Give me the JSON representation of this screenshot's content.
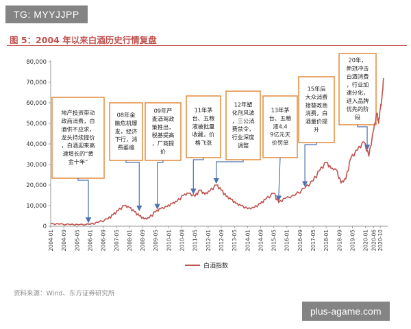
{
  "watermark_top": "TG: MYYJJPP",
  "watermark_bottom": "plus-agame.com",
  "figure_title": "图 5：2004 年以来白酒历史行情复盘",
  "source": "资料来源：Wind、东方证券研究所",
  "colors": {
    "accent": "#c0504d",
    "box_border": "#e28a3a",
    "arrow": "#4a72b0"
  },
  "chart_data": {
    "type": "line",
    "title": "图 5：2004 年以来白酒历史行情复盘",
    "xlabel": "",
    "ylabel": "",
    "ylim": [
      0,
      80000
    ],
    "yticks": [
      "0",
      "10,000",
      "20,000",
      "30,000",
      "40,000",
      "50,000",
      "60,000",
      "70,000",
      "80,000"
    ],
    "grid": false,
    "legend_position": "bottom",
    "x_ticks": [
      "2004-01",
      "2004-09",
      "2005-05",
      "2006-01",
      "2006-09",
      "2007-05",
      "2008-01",
      "2008-09",
      "2009-05",
      "2010-01",
      "2010-09",
      "2011-05",
      "2012-01",
      "2012-09",
      "2013-05",
      "2014-01",
      "2014-09",
      "2015-05",
      "2016-01",
      "2016-09",
      "2017-05",
      "2018-01",
      "2018-09",
      "2019-05",
      "2020-01",
      "2020-06",
      "2020-10"
    ],
    "series": [
      {
        "name": "白酒指数",
        "color": "#c0504d",
        "points": [
          [
            "2004-01",
            1100
          ],
          [
            "2004-06",
            1000
          ],
          [
            "2005-01",
            800
          ],
          [
            "2005-06",
            700
          ],
          [
            "2006-01",
            900
          ],
          [
            "2006-06",
            1800
          ],
          [
            "2006-12",
            3500
          ],
          [
            "2007-03",
            5500
          ],
          [
            "2007-06",
            7500
          ],
          [
            "2007-10",
            10000
          ],
          [
            "2008-01",
            9000
          ],
          [
            "2008-04",
            7000
          ],
          [
            "2008-07",
            5000
          ],
          [
            "2008-10",
            3500
          ],
          [
            "2009-01",
            4000
          ],
          [
            "2009-05",
            7000
          ],
          [
            "2009-08",
            8500
          ],
          [
            "2009-12",
            9500
          ],
          [
            "2010-03",
            11000
          ],
          [
            "2010-06",
            12000
          ],
          [
            "2010-10",
            15000
          ],
          [
            "2011-01",
            16000
          ],
          [
            "2011-05",
            14500
          ],
          [
            "2011-08",
            17500
          ],
          [
            "2011-11",
            15500
          ],
          [
            "2012-02",
            17000
          ],
          [
            "2012-06",
            20000
          ],
          [
            "2012-09",
            17500
          ],
          [
            "2012-12",
            14500
          ],
          [
            "2013-03",
            13000
          ],
          [
            "2013-06",
            11000
          ],
          [
            "2013-09",
            10000
          ],
          [
            "2014-01",
            8500
          ],
          [
            "2014-05",
            9000
          ],
          [
            "2014-09",
            11000
          ],
          [
            "2014-12",
            13000
          ],
          [
            "2015-05",
            16000
          ],
          [
            "2015-08",
            11500
          ],
          [
            "2015-12",
            13500
          ],
          [
            "2016-06",
            15000
          ],
          [
            "2016-12",
            18500
          ],
          [
            "2017-05",
            22000
          ],
          [
            "2017-09",
            27000
          ],
          [
            "2018-01",
            31000
          ],
          [
            "2018-04",
            28000
          ],
          [
            "2018-07",
            27500
          ],
          [
            "2018-10",
            21000
          ],
          [
            "2019-01",
            23000
          ],
          [
            "2019-04",
            33000
          ],
          [
            "2019-08",
            37000
          ],
          [
            "2019-12",
            41000
          ],
          [
            "2020-03",
            34000
          ],
          [
            "2020-06",
            47000
          ],
          [
            "2020-08",
            55000
          ],
          [
            "2020-09",
            50000
          ],
          [
            "2020-10",
            57000
          ],
          [
            "2020-11",
            62000
          ],
          [
            "2020-12",
            72000
          ]
        ]
      }
    ],
    "annotations": [
      {
        "text": "地产投资带动政商消费，白酒供不应求，龙头持续提价，白酒迎来高速增长的“黄金十年”",
        "target": "2005-12"
      },
      {
        "text": "08年金融危机爆发，经济下行，消费萎缩",
        "target": "2008-07"
      },
      {
        "text": "09年严查酒驾政策推出，税基提高，厂商提价",
        "target": "2009-06"
      },
      {
        "text": "11年茅台、五粮液被批量收藏，价格飞涨",
        "target": "2011-04"
      },
      {
        "text": "12年塑化剂风波，三公消费禁令，行业深度调整",
        "target": "2012-06"
      },
      {
        "text": "13年茅台、五粮液4.49亿元天价罚单",
        "target": "2015-08"
      },
      {
        "text": "15年后大众消费接替政商消费，白酒量价提升",
        "target": "2016-12"
      },
      {
        "text": "20年，新冠冲击白酒消费，行业加速分化，进入品牌优先的阶段",
        "target": "2020-02"
      }
    ]
  }
}
